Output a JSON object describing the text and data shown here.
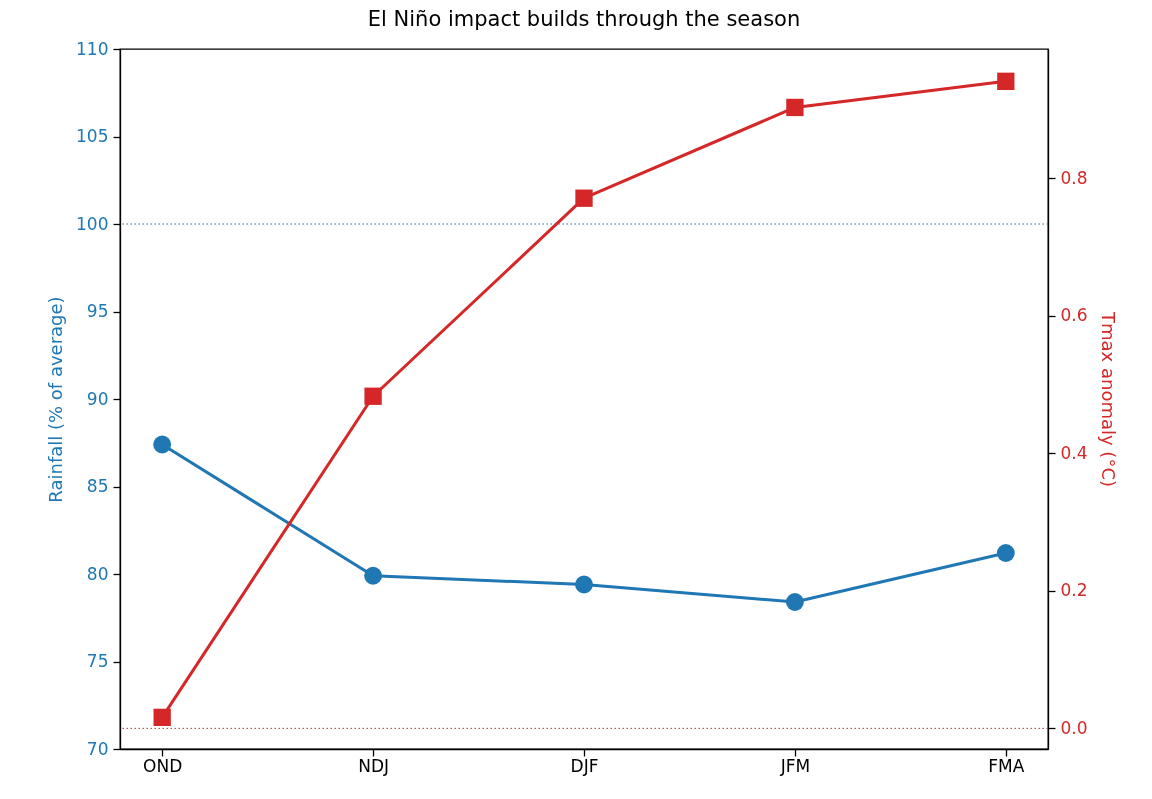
{
  "chart_data": {
    "type": "line",
    "title": "El Niño impact builds through the season",
    "ylabel": "Rainfall (% of average)",
    "y2label": "Tmax anomaly (°C)",
    "categories": [
      "OND",
      "NDJ",
      "DJF",
      "JFM",
      "FMA"
    ],
    "series": [
      {
        "color": "#1f77b4",
        "values": [
          87.4,
          79.9,
          79.4,
          78.4,
          81.2
        ],
        "marker": "circle"
      },
      {
        "color": "#d62728",
        "values": [
          0.016,
          0.483,
          0.771,
          0.903,
          0.941
        ],
        "marker": "square",
        "axis": "y2"
      }
    ],
    "ylim": [
      70,
      110
    ],
    "yticks": [
      70,
      75,
      80,
      85,
      90,
      95,
      100,
      105,
      110
    ],
    "y2lim": [
      -0.03,
      0.988
    ],
    "y2ticks": [
      {
        "value": 0,
        "label": "0.0"
      },
      0.2,
      0.4,
      0.6,
      0.8
    ],
    "ref_lines": [
      {
        "axis": "y",
        "value": 100,
        "color": "#1f77b4",
        "line_style": "dotted"
      },
      {
        "axis": "y2",
        "value": 0,
        "color": "#d62728",
        "line_style": "dotted"
      }
    ],
    "grid": false
  }
}
